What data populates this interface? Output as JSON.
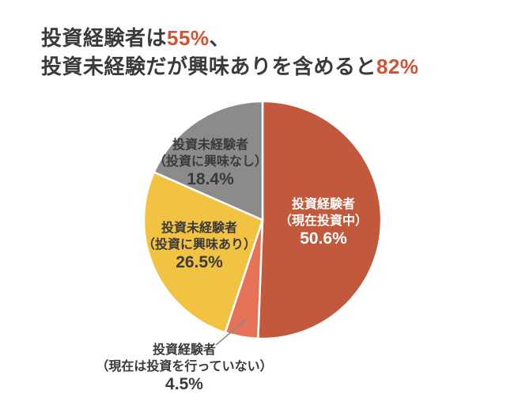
{
  "title": {
    "line1_pre": "投資経験者は",
    "line1_highlight": "55%",
    "line1_post": "、",
    "line2_pre": "投資未経験だが興味ありを含めると",
    "line2_highlight": "82%",
    "text_color": "#3a3a3a",
    "highlight_color": "#d25433"
  },
  "chart_data": {
    "type": "pie",
    "title": "投資経験者は55%、投資未経験だが興味ありを含めると82%",
    "start_angle_deg": 0,
    "direction": "clockwise",
    "legend_position": "none",
    "labels_on_slices": true,
    "slice_border_color": "#ffffff",
    "slices": [
      {
        "name": "投資経験者（現在投資中）",
        "value": 50.6,
        "color": "#c2593c",
        "text_color": "#ffffff",
        "label_lines": [
          "投資経験者",
          "（現在投資中）"
        ],
        "pct_label": "50.6%",
        "label_outside": false
      },
      {
        "name": "投資経験者（現在は投資を行っていない）",
        "value": 4.5,
        "color": "#e67257",
        "text_color": "#3a3a3a",
        "label_lines": [
          "投資経験者",
          "（現在は投資を行っていない）"
        ],
        "pct_label": "4.5%",
        "label_outside": true
      },
      {
        "name": "投資未経験者（投資に興味あり）",
        "value": 26.5,
        "color": "#f2c242",
        "text_color": "#3a3a3a",
        "label_lines": [
          "投資未経験者",
          "（投資に興味あり）"
        ],
        "pct_label": "26.5%",
        "label_outside": false
      },
      {
        "name": "投資未経験者（投資に興味なし）",
        "value": 18.4,
        "color": "#8b8b8b",
        "text_color": "#3a3a3a",
        "label_lines": [
          "投資未経験者",
          "（投資に興味なし）"
        ],
        "pct_label": "18.4%",
        "label_outside": false
      }
    ]
  }
}
